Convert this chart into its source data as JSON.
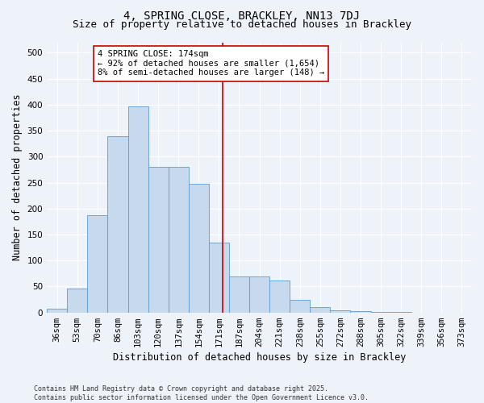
{
  "title": "4, SPRING CLOSE, BRACKLEY, NN13 7DJ",
  "subtitle": "Size of property relative to detached houses in Brackley",
  "xlabel": "Distribution of detached houses by size in Brackley",
  "ylabel": "Number of detached properties",
  "categories": [
    "36sqm",
    "53sqm",
    "70sqm",
    "86sqm",
    "103sqm",
    "120sqm",
    "137sqm",
    "154sqm",
    "171sqm",
    "187sqm",
    "204sqm",
    "221sqm",
    "238sqm",
    "255sqm",
    "272sqm",
    "288sqm",
    "305sqm",
    "322sqm",
    "339sqm",
    "356sqm",
    "373sqm"
  ],
  "values": [
    7,
    46,
    187,
    340,
    397,
    280,
    280,
    247,
    135,
    70,
    70,
    62,
    25,
    10,
    4,
    2,
    1,
    0.5,
    0.3,
    0.2,
    0.1
  ],
  "bar_color": "#c6d9ed",
  "bar_edge_color": "#5b9bd5",
  "background_color": "#eef2f9",
  "grid_color": "#ffffff",
  "vline_color": "#cc0000",
  "annotation_line1": "4 SPRING CLOSE: 174sqm",
  "annotation_line2": "← 92% of detached houses are smaller (1,654)",
  "annotation_line3": "8% of semi-detached houses are larger (148) →",
  "annotation_box_color": "#ffffff",
  "annotation_border_color": "#cc0000",
  "ylim": [
    0,
    520
  ],
  "yticks": [
    0,
    50,
    100,
    150,
    200,
    250,
    300,
    350,
    400,
    450,
    500
  ],
  "footer_text": "Contains HM Land Registry data © Crown copyright and database right 2025.\nContains public sector information licensed under the Open Government Licence v3.0.",
  "title_fontsize": 10,
  "subtitle_fontsize": 9,
  "axis_label_fontsize": 8.5,
  "tick_fontsize": 7.5,
  "annotation_fontsize": 7.5,
  "footer_fontsize": 6.0
}
